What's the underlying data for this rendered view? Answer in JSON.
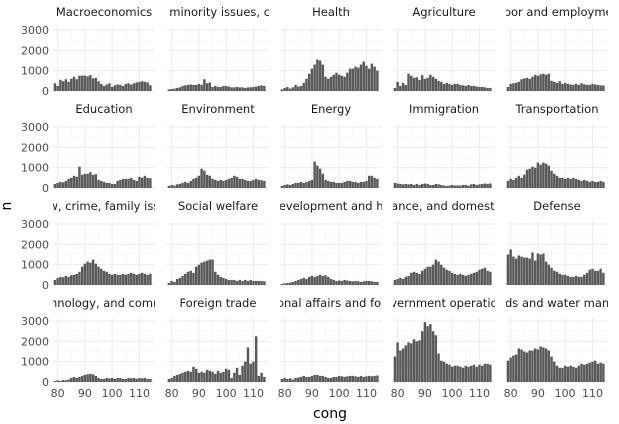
{
  "chart_data": {
    "type": "bar",
    "layout": "facet_wrap",
    "ncol": 5,
    "xlabel": "cong",
    "ylabel": "n",
    "x": [
      79,
      80,
      81,
      82,
      83,
      84,
      85,
      86,
      87,
      88,
      89,
      90,
      91,
      92,
      93,
      94,
      95,
      96,
      97,
      98,
      99,
      100,
      101,
      102,
      103,
      104,
      105,
      106,
      107,
      108,
      109,
      110,
      111,
      112,
      113,
      114
    ],
    "x_ticks": [
      80,
      90,
      100,
      110
    ],
    "y_ticks": [
      0,
      1000,
      2000,
      3000
    ],
    "xlim": [
      78.3,
      115.7
    ],
    "ylim": [
      0,
      3150
    ],
    "grid": true,
    "colors": {
      "bar": "#595959",
      "panel_grid": "#ebebeb",
      "background": "#ffffff"
    },
    "facets": [
      {
        "label": "Macroeconomics",
        "values": [
          380,
          250,
          550,
          480,
          580,
          450,
          600,
          700,
          580,
          750,
          760,
          760,
          720,
          780,
          620,
          650,
          480,
          350,
          250,
          320,
          380,
          200,
          280,
          320,
          300,
          250,
          350,
          380,
          320,
          380,
          420,
          450,
          480,
          450,
          420,
          280
        ]
      },
      {
        "label": "s, minority issues, civ",
        "values": [
          80,
          100,
          120,
          150,
          180,
          250,
          280,
          300,
          320,
          300,
          300,
          350,
          300,
          580,
          380,
          420,
          200,
          250,
          200,
          200,
          250,
          250,
          220,
          180,
          180,
          200,
          180,
          180,
          150,
          180,
          180,
          200,
          220,
          250,
          280,
          250
        ]
      },
      {
        "label": "Health",
        "values": [
          80,
          150,
          200,
          120,
          180,
          300,
          220,
          250,
          400,
          600,
          850,
          1100,
          1300,
          1550,
          1500,
          1300,
          700,
          600,
          700,
          800,
          900,
          800,
          750,
          700,
          900,
          1100,
          1100,
          1200,
          1150,
          1300,
          1450,
          1250,
          1100,
          1350,
          1200,
          1000
        ]
      },
      {
        "label": "Agriculture",
        "values": [
          150,
          450,
          250,
          400,
          300,
          850,
          750,
          650,
          680,
          550,
          780,
          600,
          650,
          800,
          700,
          600,
          500,
          450,
          350,
          400,
          350,
          300,
          350,
          350,
          300,
          280,
          250,
          300,
          250,
          250,
          220,
          200,
          200,
          180,
          150,
          150
        ]
      },
      {
        "label": "abor and employmer",
        "values": [
          200,
          350,
          380,
          400,
          450,
          580,
          620,
          650,
          600,
          700,
          800,
          750,
          820,
          850,
          800,
          850,
          500,
          450,
          400,
          480,
          350,
          400,
          350,
          320,
          300,
          350,
          300,
          380,
          330,
          300,
          300,
          350,
          320,
          300,
          280,
          270
        ]
      },
      {
        "label": "Education",
        "values": [
          200,
          250,
          300,
          280,
          350,
          450,
          500,
          600,
          550,
          1050,
          650,
          700,
          700,
          780,
          650,
          680,
          400,
          350,
          300,
          250,
          250,
          200,
          200,
          350,
          400,
          450,
          450,
          450,
          500,
          400,
          350,
          550,
          500,
          600,
          500,
          480
        ]
      },
      {
        "label": "Environment",
        "values": [
          100,
          150,
          120,
          180,
          200,
          250,
          300,
          250,
          350,
          450,
          500,
          600,
          950,
          850,
          650,
          600,
          450,
          400,
          350,
          400,
          350,
          400,
          450,
          500,
          600,
          550,
          450,
          450,
          400,
          350,
          350,
          400,
          450,
          400,
          380,
          350
        ]
      },
      {
        "label": "Energy",
        "values": [
          100,
          150,
          180,
          150,
          200,
          250,
          250,
          300,
          250,
          300,
          350,
          400,
          1300,
          1100,
          950,
          700,
          400,
          350,
          300,
          300,
          250,
          250,
          250,
          300,
          350,
          350,
          300,
          300,
          250,
          300,
          300,
          350,
          600,
          600,
          500,
          450
        ]
      },
      {
        "label": "Immigration",
        "values": [
          250,
          220,
          200,
          180,
          200,
          180,
          200,
          150,
          200,
          150,
          200,
          220,
          200,
          150,
          150,
          200,
          180,
          150,
          120,
          100,
          120,
          150,
          120,
          130,
          120,
          150,
          150,
          120,
          180,
          200,
          150,
          180,
          200,
          220,
          200,
          220
        ]
      },
      {
        "label": "Transportation",
        "values": [
          350,
          450,
          400,
          500,
          600,
          500,
          650,
          900,
          950,
          1050,
          1000,
          1250,
          1150,
          1250,
          1200,
          1100,
          850,
          700,
          600,
          500,
          500,
          450,
          500,
          450,
          500,
          450,
          400,
          350,
          400,
          350,
          300,
          350,
          300,
          300,
          350,
          300
        ]
      },
      {
        "label": "aw, crime, family issu",
        "values": [
          250,
          350,
          400,
          380,
          450,
          400,
          480,
          500,
          550,
          650,
          900,
          1050,
          1150,
          1100,
          1250,
          1050,
          900,
          800,
          700,
          650,
          550,
          500,
          550,
          500,
          500,
          550,
          500,
          550,
          600,
          550,
          500,
          550,
          600,
          550,
          500,
          550
        ]
      },
      {
        "label": "Social welfare",
        "values": [
          100,
          200,
          150,
          300,
          350,
          450,
          550,
          650,
          700,
          600,
          900,
          1000,
          1100,
          1150,
          1200,
          1250,
          1250,
          650,
          500,
          400,
          350,
          300,
          250,
          250,
          250,
          200,
          250,
          200,
          250,
          200,
          250,
          200,
          200,
          200,
          200,
          180
        ]
      },
      {
        "label": "development and ho",
        "values": [
          50,
          80,
          100,
          120,
          150,
          200,
          250,
          300,
          350,
          300,
          400,
          450,
          400,
          450,
          500,
          450,
          480,
          400,
          300,
          250,
          200,
          220,
          200,
          250,
          220,
          200,
          180,
          200,
          180,
          150,
          180,
          200,
          200,
          180,
          150,
          150
        ]
      },
      {
        "label": "nance, and domestic",
        "values": [
          250,
          300,
          350,
          300,
          400,
          450,
          600,
          650,
          600,
          550,
          700,
          800,
          900,
          900,
          1000,
          1250,
          1150,
          1000,
          850,
          750,
          700,
          600,
          550,
          500,
          550,
          500,
          450,
          500,
          550,
          600,
          650,
          750,
          800,
          850,
          700,
          650
        ]
      },
      {
        "label": "Defense",
        "values": [
          1500,
          1750,
          1400,
          1300,
          1450,
          1400,
          1350,
          1350,
          1300,
          1600,
          1200,
          1550,
          1500,
          1550,
          1150,
          1000,
          850,
          700,
          650,
          550,
          500,
          500,
          450,
          400,
          400,
          450,
          400,
          400,
          500,
          600,
          750,
          800,
          700,
          700,
          800,
          600
        ]
      },
      {
        "label": "chnology, and comm",
        "values": [
          50,
          80,
          50,
          100,
          80,
          120,
          200,
          250,
          200,
          250,
          300,
          350,
          380,
          400,
          380,
          300,
          200,
          150,
          150,
          200,
          180,
          200,
          150,
          200,
          200,
          150,
          150,
          200,
          180,
          200,
          150,
          200,
          180,
          200,
          150,
          150
        ]
      },
      {
        "label": "Foreign trade",
        "values": [
          150,
          200,
          300,
          350,
          400,
          450,
          500,
          550,
          500,
          750,
          650,
          450,
          500,
          450,
          600,
          550,
          500,
          400,
          550,
          450,
          500,
          650,
          600,
          200,
          450,
          700,
          350,
          800,
          1000,
          1700,
          900,
          1000,
          2250,
          300,
          450,
          250
        ]
      },
      {
        "label": "tional affairs and fore",
        "values": [
          150,
          200,
          150,
          180,
          120,
          200,
          220,
          250,
          300,
          250,
          250,
          300,
          350,
          350,
          300,
          300,
          250,
          200,
          200,
          250,
          250,
          300,
          280,
          250,
          280,
          300,
          300,
          280,
          250,
          300,
          250,
          280,
          300,
          280,
          300,
          320
        ]
      },
      {
        "label": "overnment operation",
        "values": [
          1250,
          1950,
          1550,
          1650,
          1800,
          1950,
          1900,
          2100,
          2000,
          2050,
          2500,
          2950,
          2750,
          2850,
          2500,
          2300,
          1400,
          1050,
          1000,
          900,
          850,
          750,
          800,
          800,
          750,
          700,
          800,
          750,
          800,
          850,
          750,
          850,
          800,
          900,
          900,
          850
        ]
      },
      {
        "label": "nds and water mana",
        "values": [
          1050,
          1200,
          1300,
          1350,
          1650,
          1600,
          1500,
          1450,
          1550,
          1550,
          1650,
          1600,
          1750,
          1700,
          1650,
          1550,
          1250,
          1000,
          800,
          700,
          700,
          800,
          750,
          800,
          750,
          700,
          800,
          900,
          850,
          900,
          950,
          1000,
          1050,
          900,
          950,
          900
        ]
      }
    ]
  }
}
